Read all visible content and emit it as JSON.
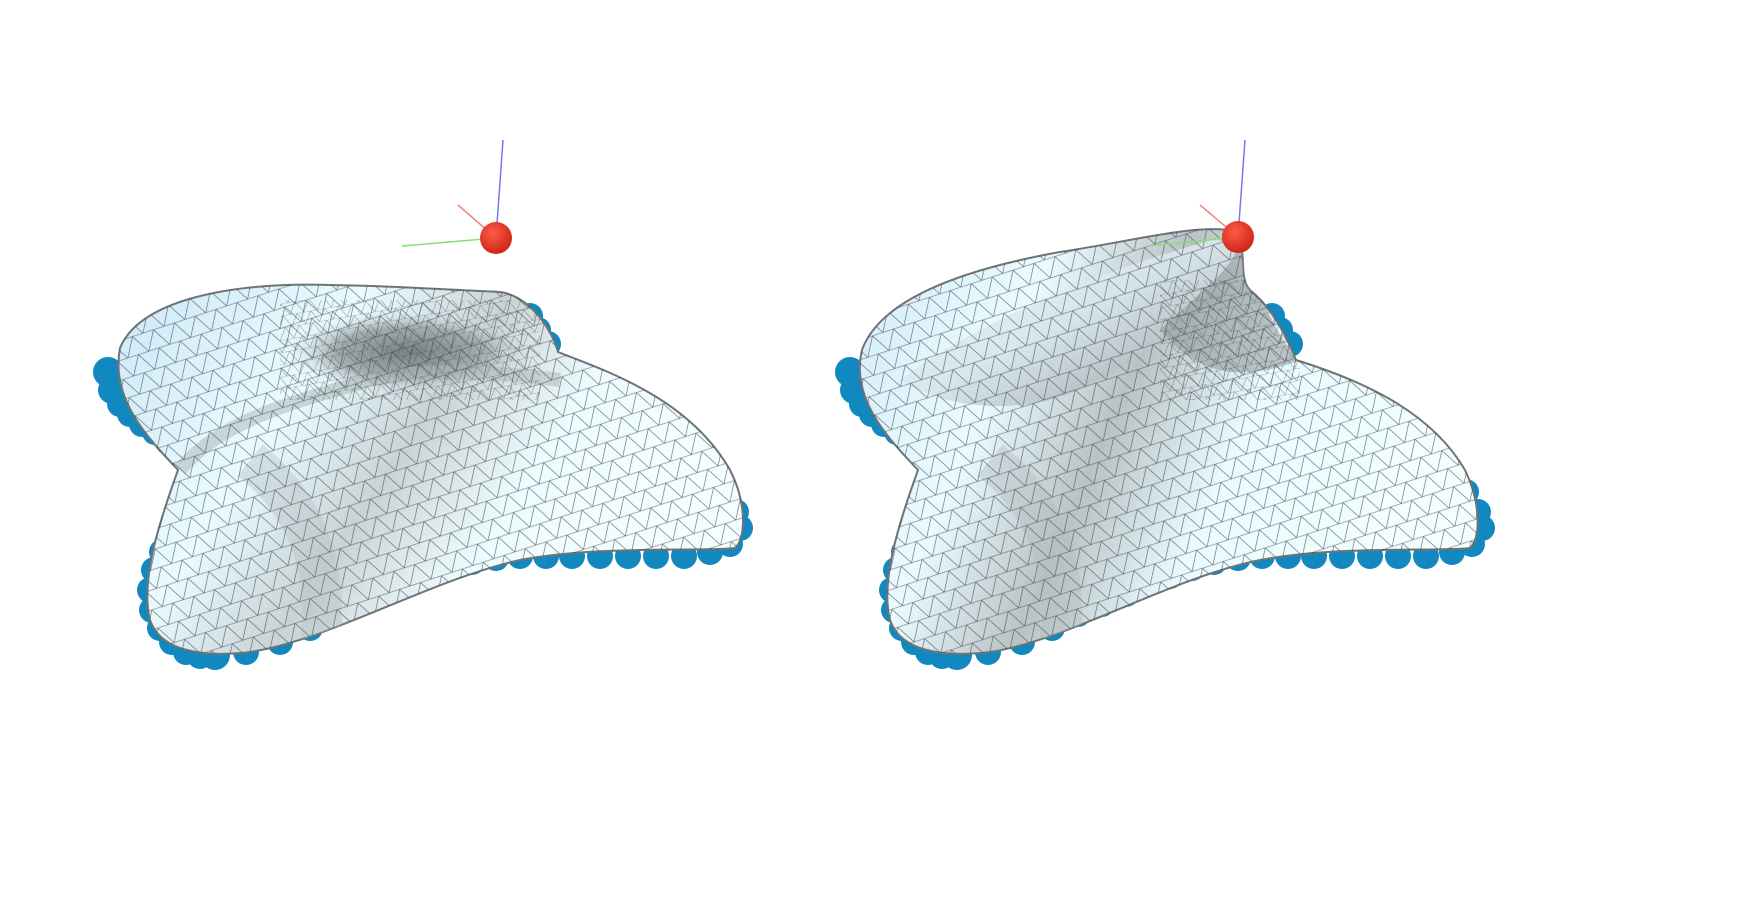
{
  "colors": {
    "background": "#ffffff",
    "surface_light": "#e8fbff",
    "surface_mid": "#cfe6f1",
    "surface_shade": "#9aa3a6",
    "surface_edge": "#6f7474",
    "mesh_line": "#3d4447",
    "boundary_node": "#1188bf",
    "handle_point": "#e23122",
    "axis_x": "#ee8888",
    "axis_y": "#88dd77",
    "axis_z": "#7777ee"
  },
  "panels": [
    {
      "name": "left-render",
      "state": "handle-detached",
      "handle_icon": "red-sphere-handle-icon"
    },
    {
      "name": "right-render",
      "state": "handle-attached",
      "handle_icon": "red-sphere-handle-icon"
    }
  ]
}
